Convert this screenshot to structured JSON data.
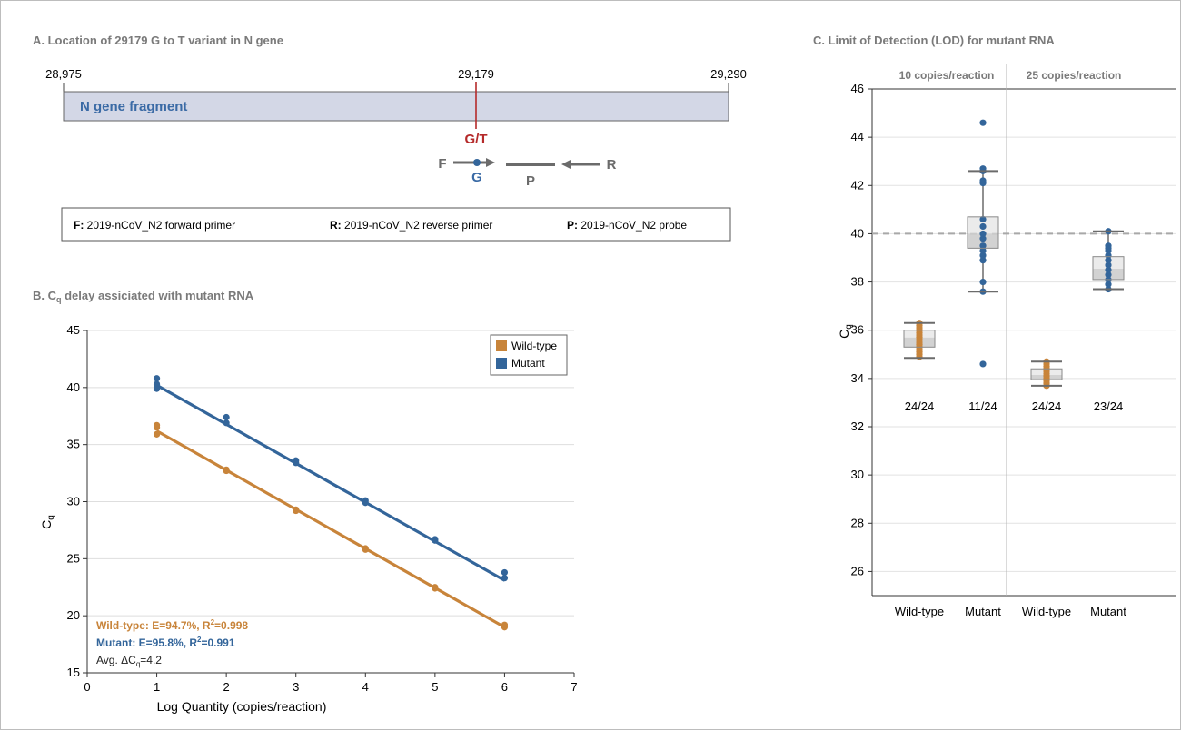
{
  "colors": {
    "wild_type": "#c8843a",
    "mutant": "#33659a",
    "variant": "#b52a2a",
    "label_blue": "#3a6aa5",
    "gray": "#6b6b6b",
    "panel_title": "#7a7a7a",
    "fragment_fill": "#d3d7e6"
  },
  "panel_a": {
    "title": "A. Location of 29179 G to T variant in N gene",
    "left_pos": "28,975",
    "variant_pos": "29,179",
    "right_pos": "29,290",
    "fragment_label": "N gene fragment",
    "variant_label": "G/T",
    "f_label": "F",
    "g_label": "G",
    "p_label": "P",
    "r_label": "R",
    "legend": [
      {
        "key": "F:",
        "text": "2019-nCoV_N2 forward primer"
      },
      {
        "key": "R:",
        "text": "2019-nCoV_N2 reverse primer"
      },
      {
        "key": "P:",
        "text": "2019-nCoV_N2 probe"
      }
    ]
  },
  "chart_data": [
    {
      "type": "scatter",
      "title_prefix": "B. C",
      "title_sub": "q",
      "title_suffix": " delay assiciated with mutant RNA",
      "xlabel": "Log Quantity (copies/reaction)",
      "ylabel_main": "C",
      "ylabel_sub": "q",
      "xlim": [
        0,
        7
      ],
      "ylim": [
        15,
        45
      ],
      "xticks": [
        0,
        1,
        2,
        3,
        4,
        5,
        6,
        7
      ],
      "yticks": [
        15,
        20,
        25,
        30,
        35,
        40,
        45
      ],
      "grid": true,
      "legend_placement": "top-right",
      "series": [
        {
          "name": "Wild-type",
          "points": [
            [
              1,
              36.7
            ],
            [
              1,
              36.5
            ],
            [
              1,
              35.9
            ],
            [
              2,
              32.8
            ],
            [
              2,
              32.7
            ],
            [
              3,
              29.3
            ],
            [
              3,
              29.2
            ],
            [
              4,
              25.9
            ],
            [
              4,
              25.8
            ],
            [
              5,
              22.5
            ],
            [
              5,
              22.4
            ],
            [
              6,
              19.2
            ],
            [
              6,
              19.0
            ]
          ],
          "fit": [
            [
              1,
              36.2
            ],
            [
              6,
              19.0
            ]
          ]
        },
        {
          "name": "Mutant",
          "points": [
            [
              1,
              40.8
            ],
            [
              1,
              40.3
            ],
            [
              1,
              39.9
            ],
            [
              2,
              37.4
            ],
            [
              2,
              36.9
            ],
            [
              3,
              33.6
            ],
            [
              3,
              33.4
            ],
            [
              4,
              30.1
            ],
            [
              4,
              29.9
            ],
            [
              5,
              26.7
            ],
            [
              5,
              26.6
            ],
            [
              6,
              23.8
            ],
            [
              6,
              23.3
            ]
          ],
          "fit": [
            [
              1,
              40.2
            ],
            [
              6,
              23.1
            ]
          ]
        }
      ],
      "annotations": {
        "wt_prefix": "Wild-type: E=94.7%, R",
        "wt_sup": "2",
        "wt_suffix": "=0.998",
        "mut_prefix": "Mutant: E=95.8%, R",
        "mut_sup": "2",
        "mut_suffix": "=0.991",
        "avg_prefix": "Avg. ΔC",
        "avg_sub": "q",
        "avg_suffix": "=4.2"
      }
    },
    {
      "type": "box",
      "title": "C. Limit of Detection (LOD) for mutant RNA",
      "ylabel_main": "C",
      "ylabel_sub": "q",
      "ylim": [
        25,
        46
      ],
      "yticks": [
        26,
        28,
        30,
        32,
        34,
        36,
        38,
        40,
        42,
        44,
        46
      ],
      "threshold": 40,
      "group_headers": [
        "10 copies/reaction",
        "25 copies/reaction"
      ],
      "categories": [
        "Wild-type",
        "Mutant",
        "Wild-type",
        "Mutant"
      ],
      "detection": [
        "24/24",
        "11/24",
        "24/24",
        "23/24"
      ],
      "boxes": [
        {
          "series": "Wild-type",
          "whisker_low": 34.85,
          "q1": 35.3,
          "median": 35.7,
          "q3": 36.0,
          "whisker_high": 36.3,
          "points": [
            34.9,
            35.0,
            35.1,
            35.2,
            35.3,
            35.4,
            35.5,
            35.6,
            35.7,
            35.8,
            35.9,
            36.0,
            36.1,
            36.2,
            36.3
          ]
        },
        {
          "series": "Mutant",
          "whisker_low": 37.6,
          "q1": 39.4,
          "median": 40.0,
          "q3": 40.7,
          "whisker_high": 42.6,
          "points": [
            34.6,
            37.6,
            38.0,
            38.9,
            39.1,
            39.3,
            39.5,
            39.8,
            40.0,
            40.3,
            40.6,
            42.1,
            42.2,
            42.6,
            42.7,
            44.6
          ]
        },
        {
          "series": "Wild-type",
          "whisker_low": 33.7,
          "q1": 33.95,
          "median": 34.15,
          "q3": 34.4,
          "whisker_high": 34.7,
          "points": [
            33.7,
            33.8,
            33.9,
            34.0,
            34.1,
            34.2,
            34.3,
            34.4,
            34.5,
            34.6,
            34.7
          ]
        },
        {
          "series": "Mutant",
          "whisker_low": 37.7,
          "q1": 38.1,
          "median": 38.55,
          "q3": 39.05,
          "whisker_high": 40.1,
          "points": [
            37.7,
            37.9,
            38.1,
            38.3,
            38.5,
            38.7,
            38.9,
            39.1,
            39.3,
            39.4,
            39.5,
            40.1
          ]
        }
      ]
    }
  ]
}
